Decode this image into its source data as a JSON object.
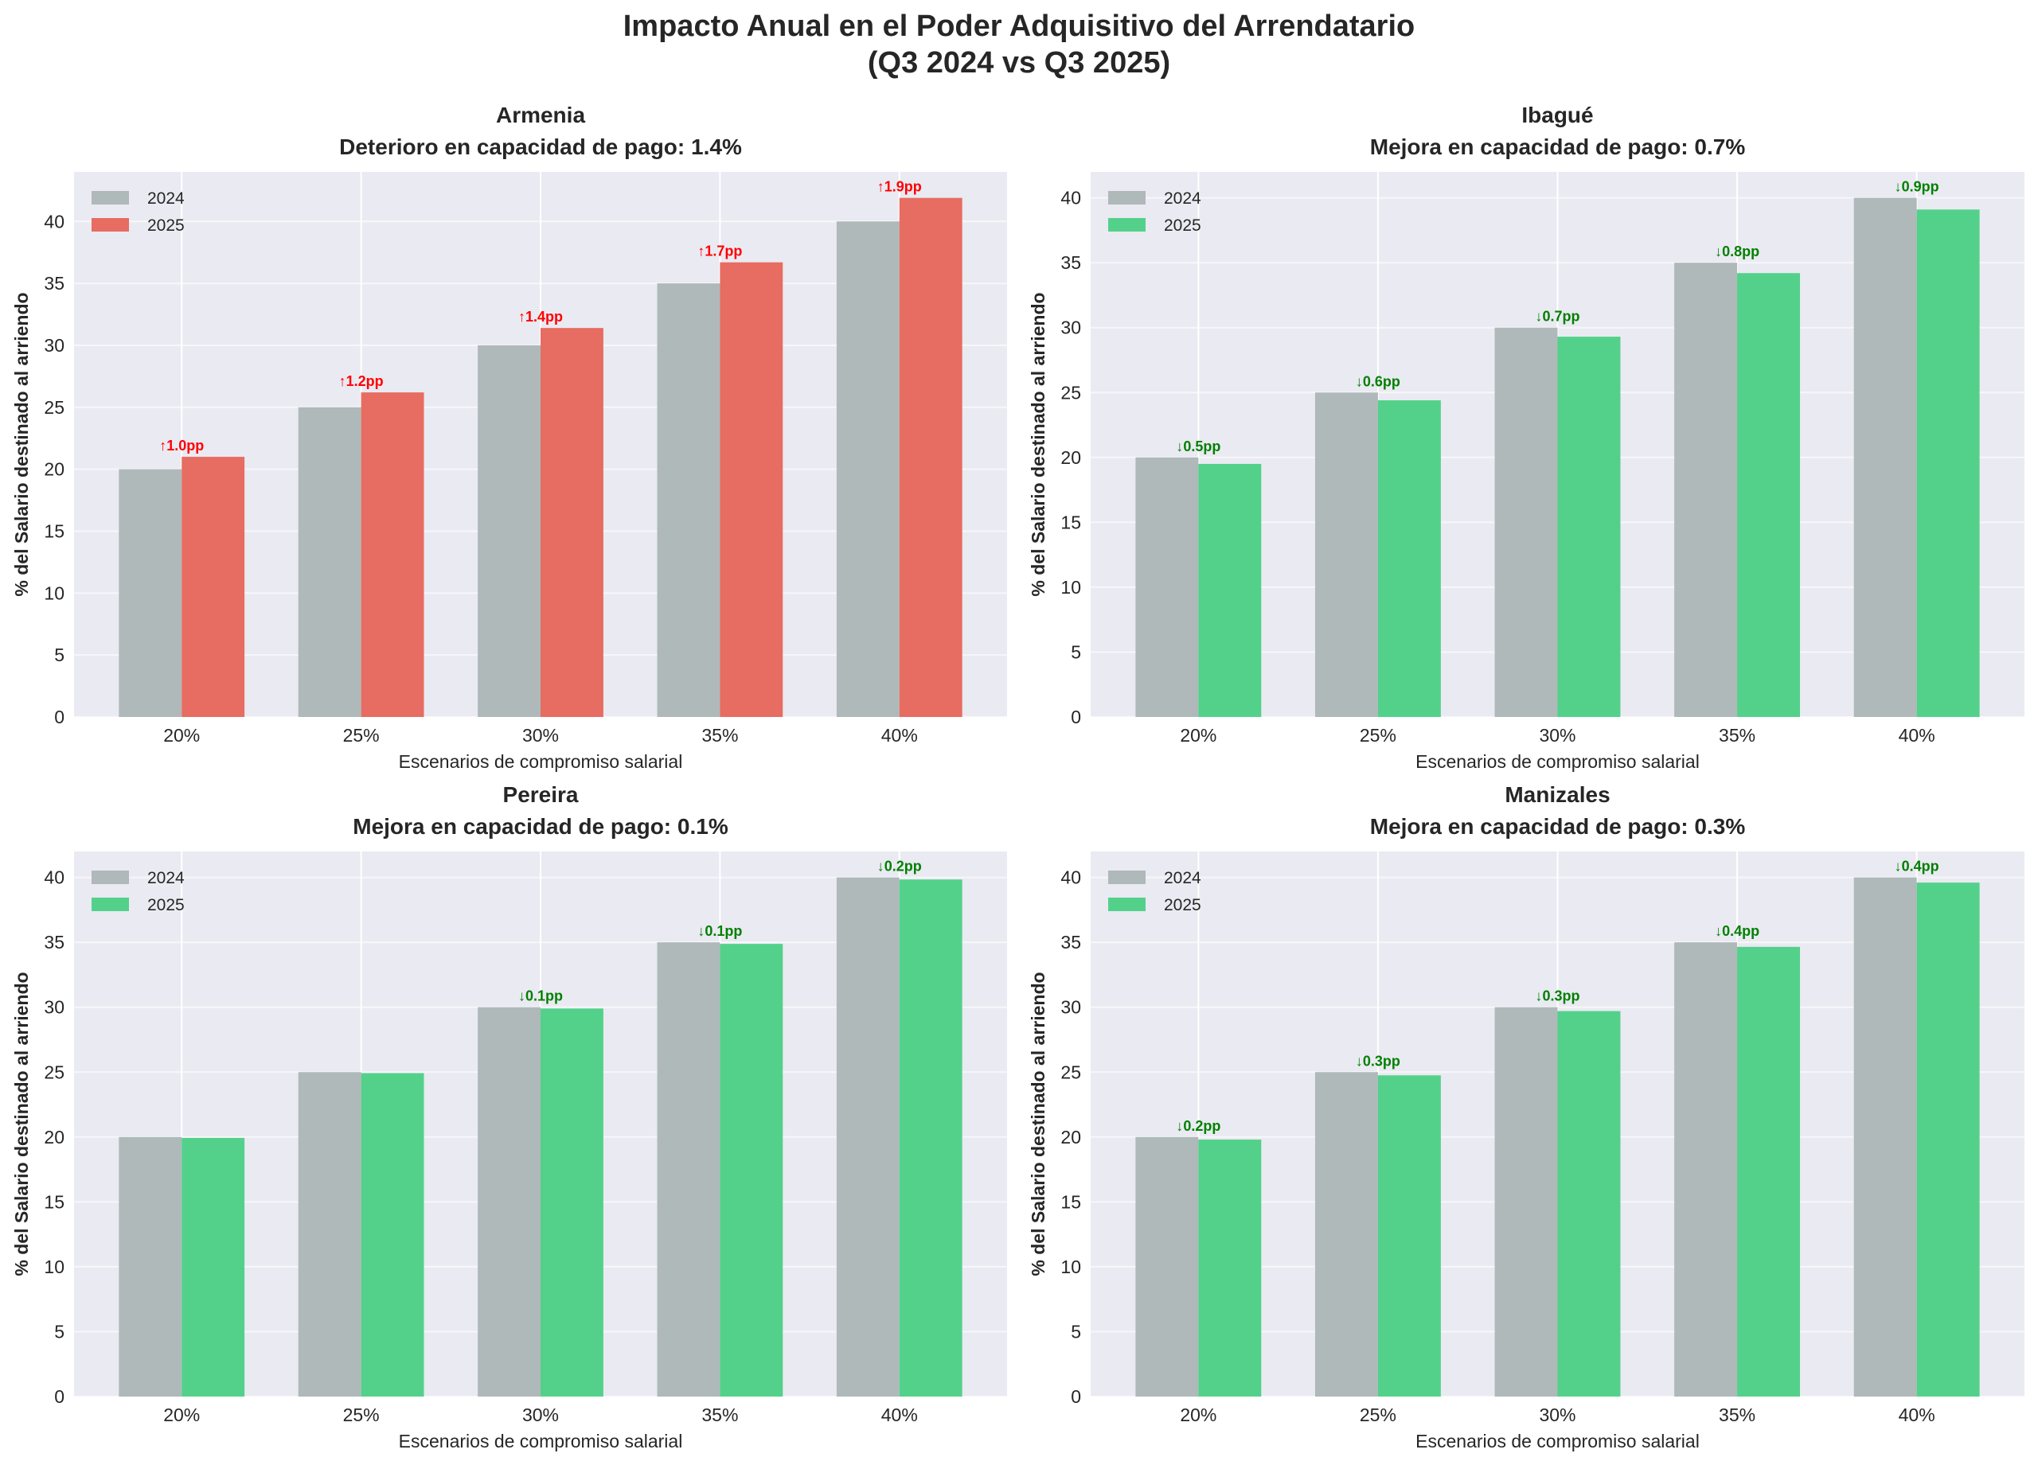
{
  "figure": {
    "title_line1": "Impacto Anual en el Poder Adquisitivo del Arrendatario",
    "title_line2": "(Q3 2024 vs Q3 2025)"
  },
  "colors": {
    "background_axes": "#eaeaf2",
    "grid": "#ffffff",
    "bar_2024": "#afb9b9",
    "bar_2025_worse": "#e76c61",
    "bar_2025_better": "#53d18a",
    "annotation_worse": "#ff0000",
    "annotation_better": "#008000"
  },
  "chart_data": [
    {
      "type": "bar",
      "title": "Armenia",
      "subtitle": "Deterioro en capacidad de pago: 1.4%",
      "trend": "worse",
      "categories": [
        "20%",
        "25%",
        "30%",
        "35%",
        "40%"
      ],
      "xlabel": "Escenarios de compromiso salarial",
      "ylabel": "% del Salario destinado al arriendo",
      "ylim": [
        0,
        44
      ],
      "yticks": [
        0,
        5,
        10,
        15,
        20,
        25,
        30,
        35,
        40
      ],
      "grid": true,
      "legend": "top-left",
      "series": [
        {
          "name": "2024",
          "values": [
            20,
            25,
            30,
            35,
            40
          ]
        },
        {
          "name": "2025",
          "values": [
            21.0,
            26.2,
            31.4,
            36.7,
            41.9
          ]
        }
      ],
      "annotations": [
        "↑1.0pp",
        "↑1.2pp",
        "↑1.4pp",
        "↑1.7pp",
        "↑1.9pp"
      ]
    },
    {
      "type": "bar",
      "title": "Ibagué",
      "subtitle": "Mejora en capacidad de pago: 0.7%",
      "trend": "better",
      "categories": [
        "20%",
        "25%",
        "30%",
        "35%",
        "40%"
      ],
      "xlabel": "Escenarios de compromiso salarial",
      "ylabel": "% del Salario destinado al arriendo",
      "ylim": [
        0,
        42
      ],
      "yticks": [
        0,
        5,
        10,
        15,
        20,
        25,
        30,
        35,
        40
      ],
      "grid": true,
      "legend": "top-left",
      "series": [
        {
          "name": "2024",
          "values": [
            20,
            25,
            30,
            35,
            40
          ]
        },
        {
          "name": "2025",
          "values": [
            19.5,
            24.4,
            29.3,
            34.2,
            39.1
          ]
        }
      ],
      "annotations": [
        "↓0.5pp",
        "↓0.6pp",
        "↓0.7pp",
        "↓0.8pp",
        "↓0.9pp"
      ]
    },
    {
      "type": "bar",
      "title": "Pereira",
      "subtitle": "Mejora en capacidad de pago: 0.1%",
      "trend": "better",
      "categories": [
        "20%",
        "25%",
        "30%",
        "35%",
        "40%"
      ],
      "xlabel": "Escenarios de compromiso salarial",
      "ylabel": "% del Salario destinado al arriendo",
      "ylim": [
        0,
        42
      ],
      "yticks": [
        0,
        5,
        10,
        15,
        20,
        25,
        30,
        35,
        40
      ],
      "grid": true,
      "legend": "top-left",
      "series": [
        {
          "name": "2024",
          "values": [
            20,
            25,
            30,
            35,
            40
          ]
        },
        {
          "name": "2025",
          "values": [
            19.93,
            24.92,
            29.9,
            34.88,
            39.84
          ]
        }
      ],
      "annotations": [
        "",
        "",
        "↓0.1pp",
        "↓0.1pp",
        "↓0.2pp"
      ]
    },
    {
      "type": "bar",
      "title": "Manizales",
      "subtitle": "Mejora en capacidad de pago: 0.3%",
      "trend": "better",
      "categories": [
        "20%",
        "25%",
        "30%",
        "35%",
        "40%"
      ],
      "xlabel": "Escenarios de compromiso salarial",
      "ylabel": "% del Salario destinado al arriendo",
      "ylim": [
        0,
        42
      ],
      "yticks": [
        0,
        5,
        10,
        15,
        20,
        25,
        30,
        35,
        40
      ],
      "grid": true,
      "legend": "top-left",
      "series": [
        {
          "name": "2024",
          "values": [
            20,
            25,
            30,
            35,
            40
          ]
        },
        {
          "name": "2025",
          "values": [
            19.8,
            24.75,
            29.7,
            34.65,
            39.6
          ]
        }
      ],
      "annotations": [
        "↓0.2pp",
        "↓0.3pp",
        "↓0.3pp",
        "↓0.4pp",
        "↓0.4pp"
      ]
    }
  ]
}
